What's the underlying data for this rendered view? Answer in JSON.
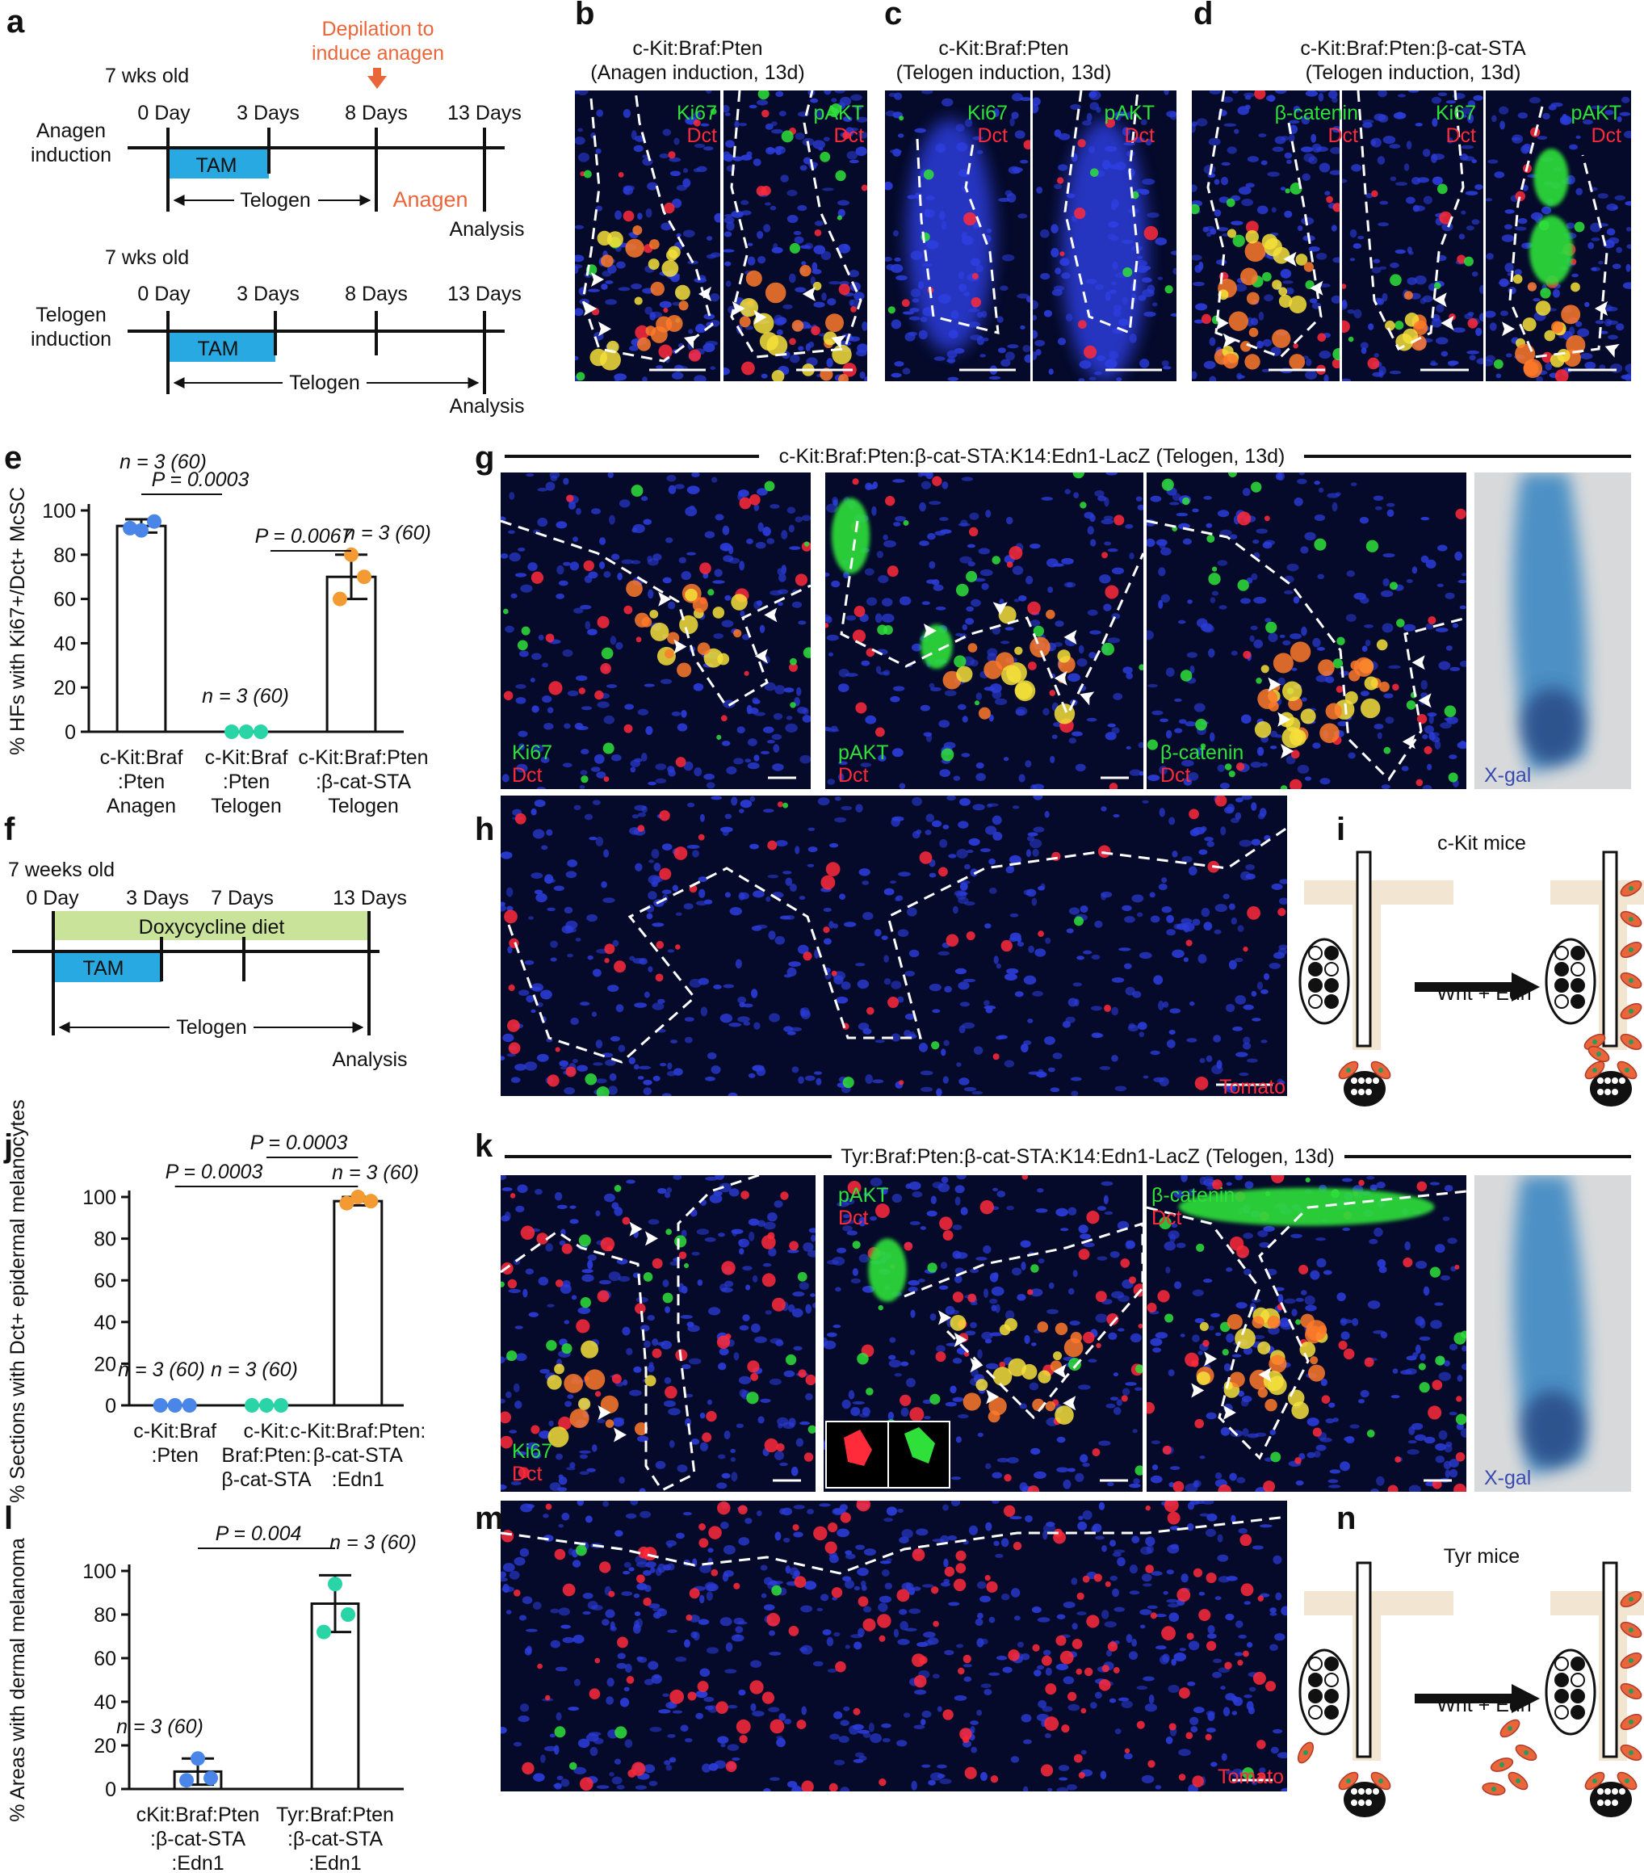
{
  "colors": {
    "accent_orange": "#e8663a",
    "tam_blue": "#29a9e1",
    "doxy_green": "#c9e39b",
    "dot_blue": "#4a86e8",
    "dot_teal": "#29d4a6",
    "dot_orange": "#f39a33",
    "micro_bg": "#050a2a",
    "nuclei_blue": "#2b3cd8",
    "marker_green": "#2fe03a",
    "marker_red": "#ff2a3a",
    "xgal_blue": "#2c7fc0"
  },
  "icons": [
    "arrowhead-marker",
    "down-arrow",
    "double-arrow",
    "hair-follicle-diagram",
    "wide-arrow"
  ],
  "panel_a": {
    "label": "a",
    "depilation": [
      "Depilation to",
      "induce anagen"
    ],
    "anagen": {
      "age": "7 wks old",
      "row": [
        "Anagen",
        "induction"
      ],
      "days": [
        "0 Day",
        "3 Days",
        "8 Days",
        "13 Days"
      ],
      "tam": "TAM",
      "telogen": "Telogen",
      "anagen_word": "Anagen",
      "analysis": "Analysis"
    },
    "telogen": {
      "age": "7 wks old",
      "row": [
        "Telogen",
        "induction"
      ],
      "days": [
        "0 Day",
        "3 Days",
        "8 Days",
        "13 Days"
      ],
      "tam": "TAM",
      "telogen": "Telogen",
      "analysis": "Analysis"
    }
  },
  "panel_b": {
    "label": "b",
    "title": [
      "c-Kit:Braf:Pten",
      "(Anagen induction, 13d)"
    ],
    "ch1": [
      "Ki67",
      "Dct"
    ],
    "ch2": [
      "pAKT",
      "Dct"
    ]
  },
  "panel_c": {
    "label": "c",
    "title": [
      "c-Kit:Braf:Pten",
      "(Telogen induction, 13d)"
    ],
    "ch1": [
      "Ki67",
      "Dct"
    ],
    "ch2": [
      "pAKT",
      "Dct"
    ]
  },
  "panel_d": {
    "label": "d",
    "title": [
      "c-Kit:Braf:Pten:β-cat-STA",
      "(Telogen induction, 13d)"
    ],
    "ch1": [
      "β-catenin",
      "Dct"
    ],
    "ch2": [
      "Ki67",
      "Dct"
    ],
    "ch3": [
      "pAKT",
      "Dct"
    ]
  },
  "panel_e": {
    "label": "e",
    "n_labels": [
      "n = 3 (60)",
      "n = 3 (60)",
      "n = 3 (60)"
    ],
    "p1": "P = 0.0003",
    "p2": "P = 0.0067",
    "cat_lines": [
      [
        "c-Kit:Braf",
        ":Pten",
        "Anagen"
      ],
      [
        "c-Kit:Braf",
        ":Pten",
        "Telogen"
      ],
      [
        "c-Kit:Braf:Pten",
        ":β-cat-STA",
        "Telogen"
      ]
    ]
  },
  "panel_f": {
    "label": "f",
    "age": "7 weeks old",
    "days": [
      "0 Day",
      "3 Days",
      "7 Days",
      "13 Days"
    ],
    "doxy": "Doxycycline diet",
    "tam": "TAM",
    "telogen": "Telogen",
    "analysis": "Analysis"
  },
  "panel_g": {
    "label": "g",
    "title": "c-Kit:Braf:Pten:β-cat-STA:K14:Edn1-LacZ (Telogen, 13d)",
    "ch1": [
      "Ki67",
      "Dct"
    ],
    "ch2": [
      "pAKT",
      "Dct"
    ],
    "ch3": [
      "β-catenin",
      "Dct"
    ],
    "ch4": "X-gal"
  },
  "panel_h": {
    "label": "h",
    "tomato": "Tomato"
  },
  "panel_i": {
    "label": "i",
    "title": "c-Kit mice",
    "arrow": "Wnt + Edn"
  },
  "panel_j": {
    "label": "j",
    "n_labels": [
      "n = 3 (60)",
      "n = 3 (60)",
      "n = 3 (60)"
    ],
    "p1": "P = 0.0003",
    "p2": "P = 0.0003",
    "cat_lines": [
      [
        "c-Kit:Braf",
        ":Pten"
      ],
      [
        "c-Kit:",
        "Braf:Pten:",
        "β-cat-STA"
      ],
      [
        "c-Kit:Braf:Pten:",
        "β-cat-STA",
        ":Edn1"
      ]
    ]
  },
  "panel_k": {
    "label": "k",
    "title": "Tyr:Braf:Pten:β-cat-STA:K14:Edn1-LacZ (Telogen, 13d)",
    "ch1": [
      "Ki67",
      "Dct"
    ],
    "ch2": [
      "pAKT",
      "Dct"
    ],
    "ch3": [
      "β-catenin",
      "Dct"
    ],
    "ch4": "X-gal"
  },
  "panel_l": {
    "label": "l",
    "n_labels": [
      "n = 3 (60)",
      "n = 3 (60)"
    ],
    "p1": "P = 0.004",
    "cat_lines": [
      [
        "cKit:Braf:Pten",
        ":β-cat-STA",
        ":Edn1"
      ],
      [
        "Tyr:Braf:Pten",
        ":β-cat-STA",
        ":Edn1"
      ]
    ]
  },
  "panel_m": {
    "label": "m",
    "tomato": "Tomato"
  },
  "panel_n": {
    "label": "n",
    "title": "Tyr mice",
    "arrow": "Wnt + Edn"
  },
  "chart_data": [
    {
      "id": "e",
      "type": "bar",
      "ylabel": "% HFs with Ki67+/Dct+ McSC",
      "ylim": [
        0,
        100
      ],
      "yticks": [
        0,
        20,
        40,
        60,
        80,
        100
      ],
      "categories": [
        "c-Kit:Braf:Pten Anagen",
        "c-Kit:Braf:Pten Telogen",
        "c-Kit:Braf:Pten:β-cat-STA Telogen"
      ],
      "values": [
        93,
        0,
        70
      ],
      "errors": [
        3,
        0,
        10
      ],
      "points": [
        [
          91,
          95,
          92
        ],
        [
          0,
          0,
          0
        ],
        [
          80,
          70,
          60
        ]
      ],
      "n": [
        "n = 3 (60)",
        "n = 3 (60)",
        "n = 3 (60)"
      ],
      "comparisons": [
        {
          "pair": [
            0,
            1
          ],
          "p": "P = 0.0003"
        },
        {
          "pair": [
            1,
            2
          ],
          "p": "P = 0.0067"
        }
      ]
    },
    {
      "id": "j",
      "type": "bar",
      "ylabel": "% Sections with Dct+ epidermal melanocytes",
      "ylim": [
        0,
        100
      ],
      "yticks": [
        0,
        20,
        40,
        60,
        80,
        100
      ],
      "categories": [
        "c-Kit:Braf:Pten",
        "c-Kit:Braf:Pten:β-cat-STA",
        "c-Kit:Braf:Pten:β-cat-STA:Edn1"
      ],
      "values": [
        0,
        0,
        98
      ],
      "errors": [
        0,
        0,
        2
      ],
      "points": [
        [
          0,
          0,
          0
        ],
        [
          0,
          0,
          0
        ],
        [
          100,
          98,
          97
        ]
      ],
      "n": [
        "n = 3 (60)",
        "n = 3 (60)",
        "n = 3 (60)"
      ],
      "comparisons": [
        {
          "pair": [
            0,
            2
          ],
          "p": "P = 0.0003"
        },
        {
          "pair": [
            1,
            2
          ],
          "p": "P = 0.0003"
        }
      ]
    },
    {
      "id": "l",
      "type": "bar",
      "ylabel": "% Areas with dermal melanoma",
      "ylim": [
        0,
        100
      ],
      "yticks": [
        0,
        20,
        40,
        60,
        80,
        100
      ],
      "categories": [
        "cKit:Braf:Pten:β-cat-STA:Edn1",
        "Tyr:Braf:Pten:β-cat-STA:Edn1"
      ],
      "values": [
        8,
        85
      ],
      "errors": [
        6,
        13
      ],
      "points": [
        [
          14,
          5,
          4
        ],
        [
          94,
          80,
          72
        ]
      ],
      "n": [
        "n = 3 (60)",
        "n = 3 (60)"
      ],
      "comparisons": [
        {
          "pair": [
            0,
            1
          ],
          "p": "P = 0.004"
        }
      ]
    }
  ]
}
